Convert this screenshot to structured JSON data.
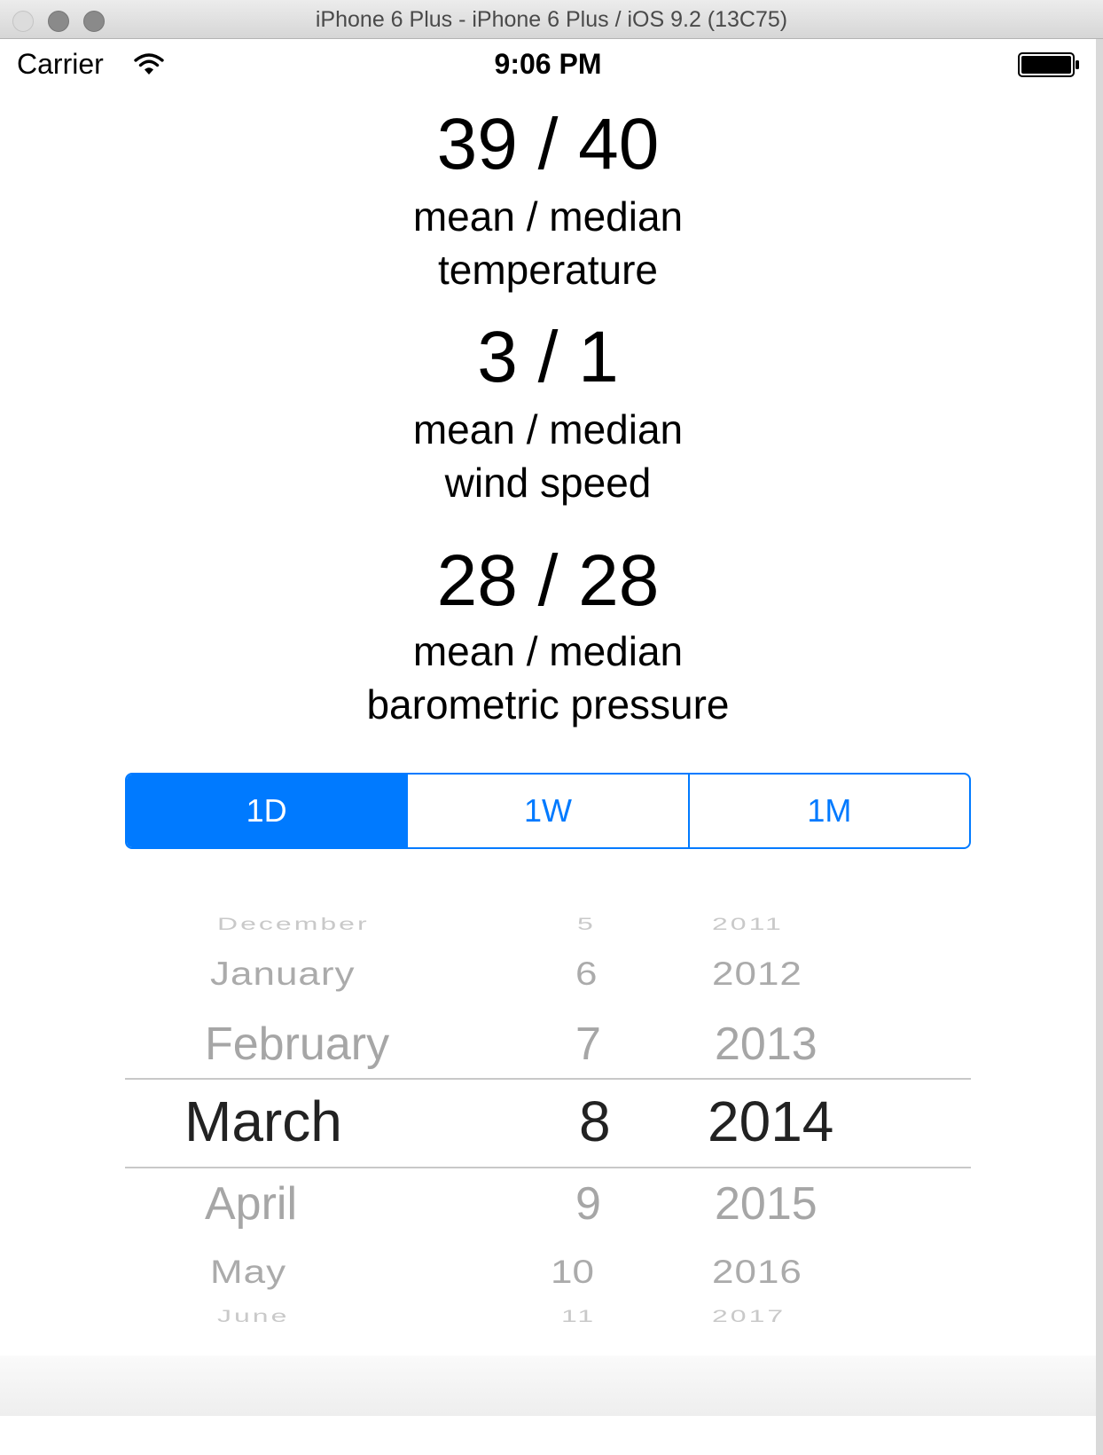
{
  "window": {
    "title": "iPhone 6 Plus - iPhone 6 Plus / iOS 9.2 (13C75)"
  },
  "status_bar": {
    "carrier": "Carrier",
    "time": "9:06 PM"
  },
  "stats": [
    {
      "value": "39 / 40",
      "caption": "mean / median",
      "metric": "temperature"
    },
    {
      "value": "3 / 1",
      "caption": "mean / median",
      "metric": "wind speed"
    },
    {
      "value": "28 / 28",
      "caption": "mean / median",
      "metric": "barometric pressure"
    }
  ],
  "segmented_control": {
    "options": [
      "1D",
      "1W",
      "1M"
    ],
    "selected": "1D"
  },
  "date_picker": {
    "months": [
      "December",
      "January",
      "February",
      "March",
      "April",
      "May",
      "June"
    ],
    "days": [
      "5",
      "6",
      "7",
      "8",
      "9",
      "10",
      "11"
    ],
    "years": [
      "2011",
      "2012",
      "2013",
      "2014",
      "2015",
      "2016",
      "2017"
    ],
    "selected": {
      "month": "March",
      "day": "8",
      "year": "2014"
    }
  },
  "colors": {
    "accent": "#007aff",
    "picker_unselected": "#a6a6a6",
    "picker_selected": "#222222"
  }
}
